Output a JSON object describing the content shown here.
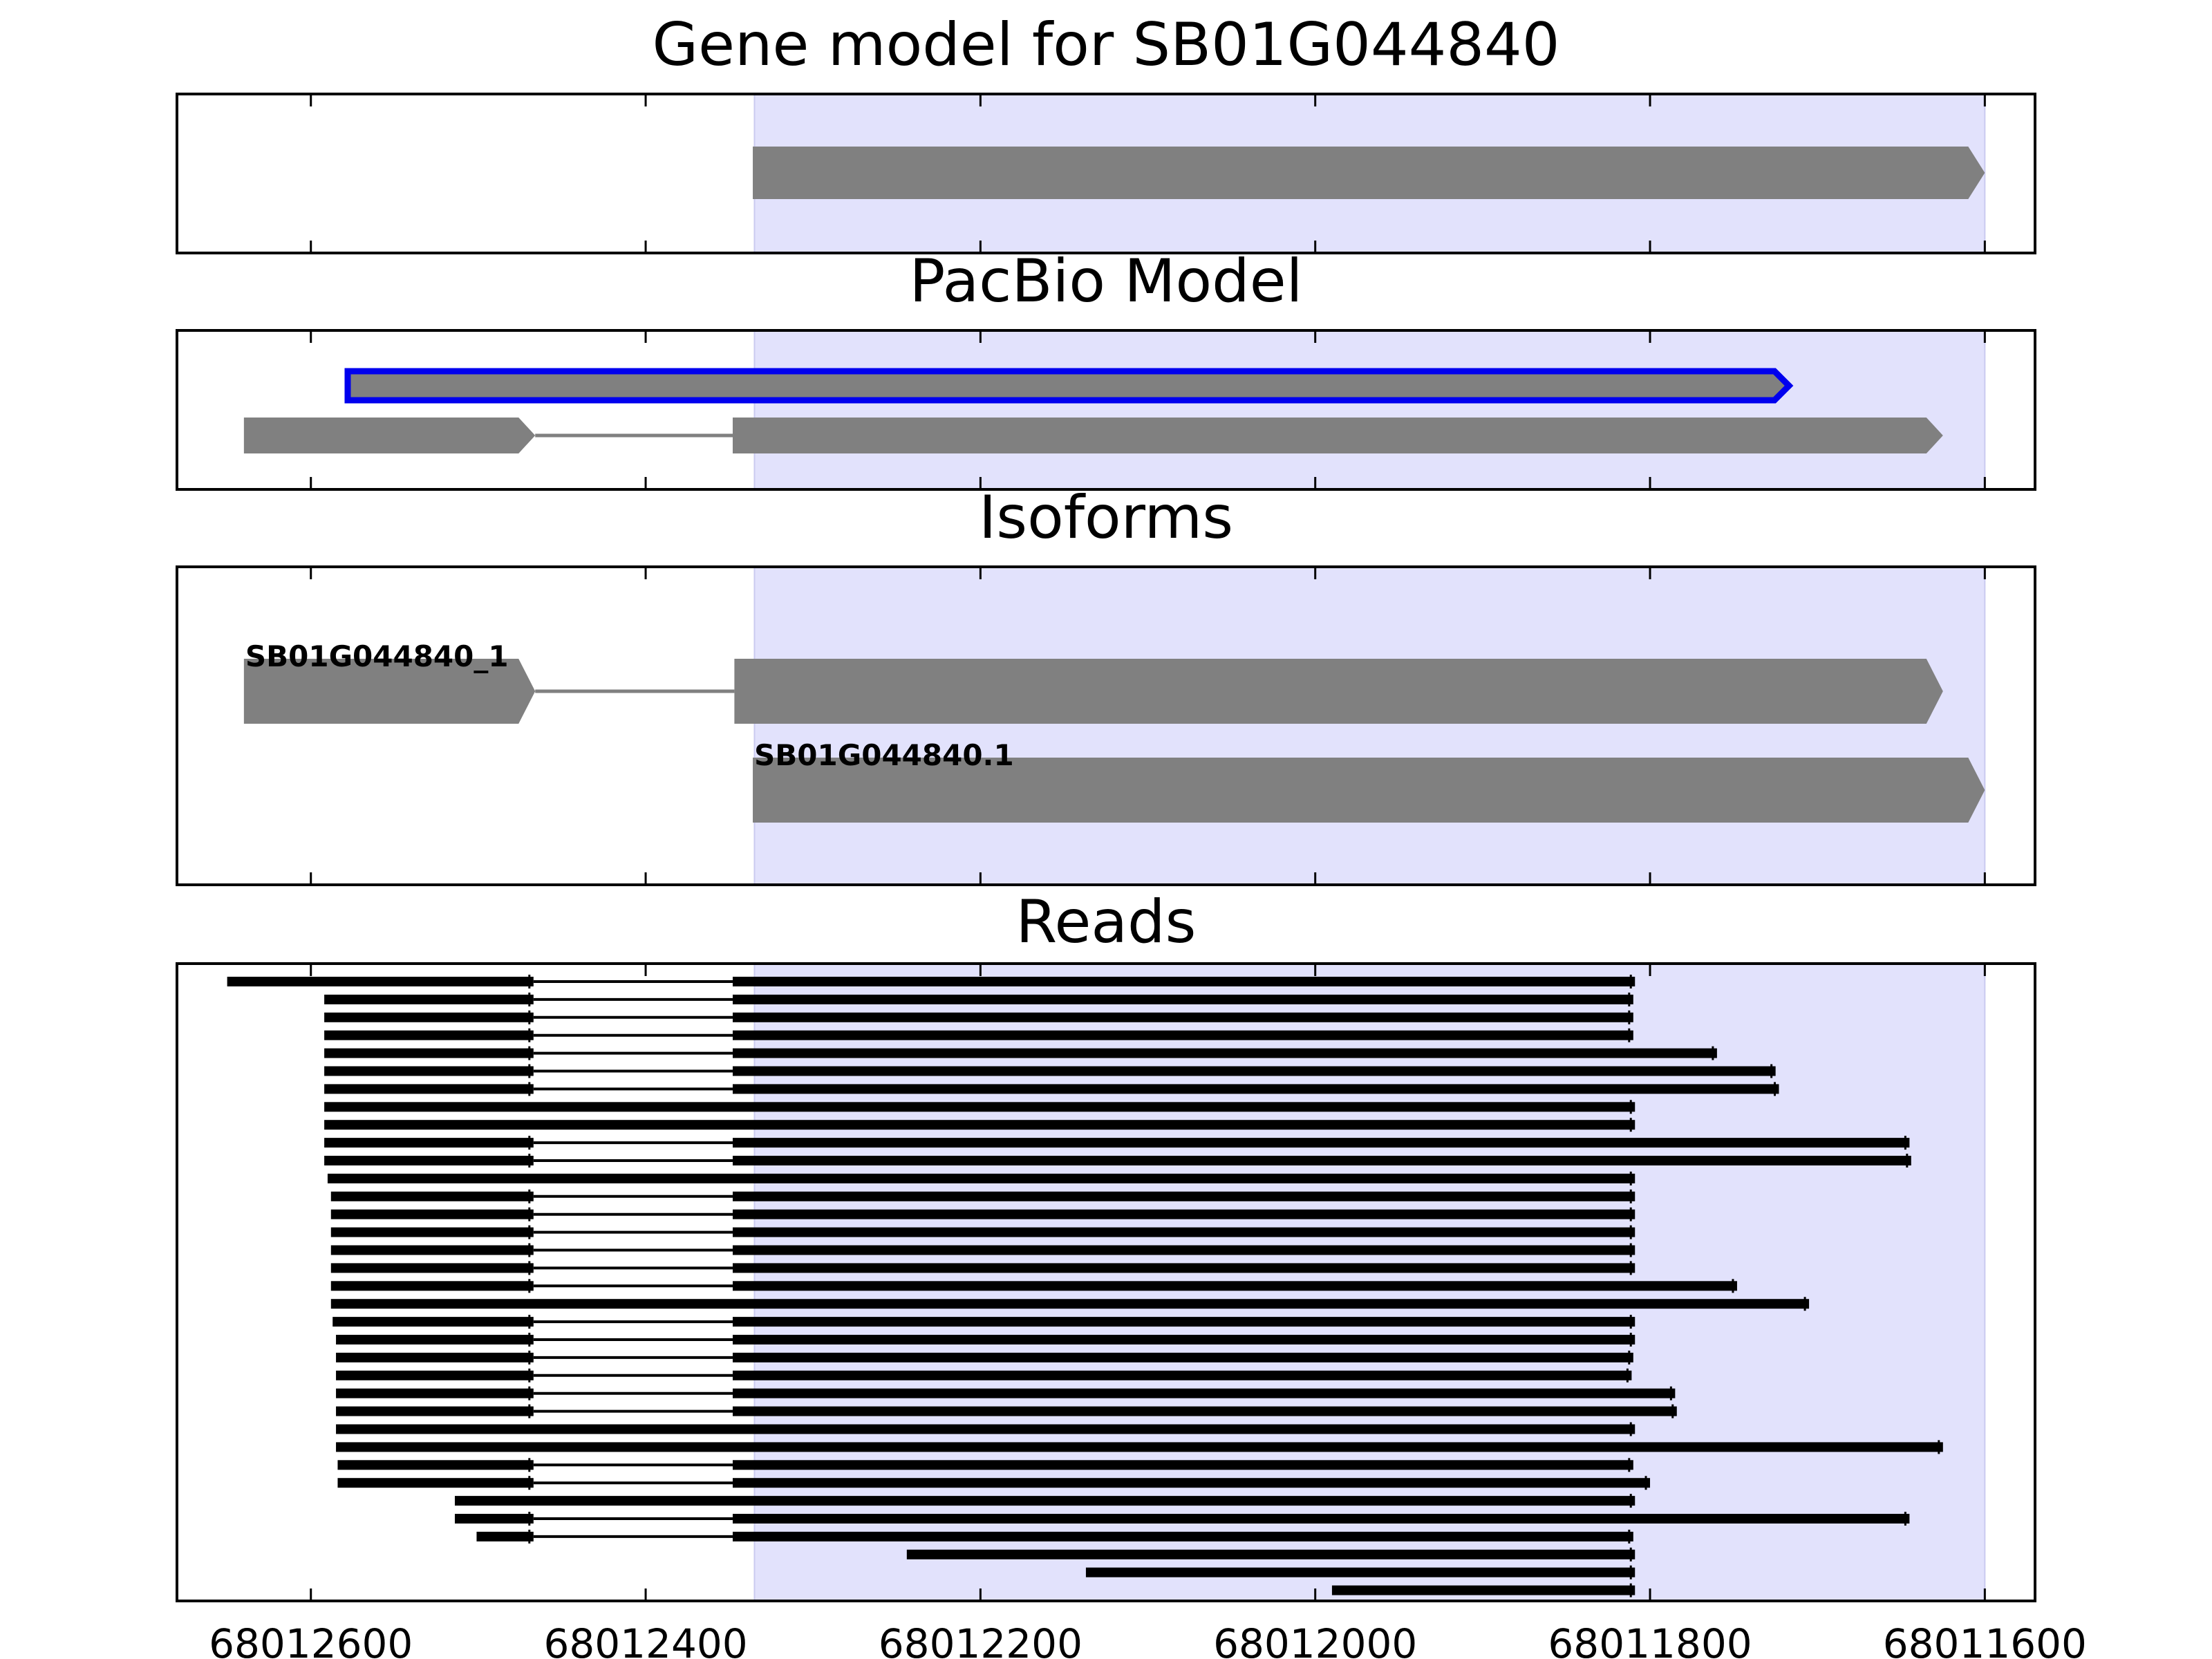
{
  "colors": {
    "highlight": "#e2e2fc",
    "highlight_edge": "#cacaf0",
    "feature": "#808080",
    "pacbio_edge": "#0000ee",
    "read": "#000000",
    "axis": "#000000"
  },
  "chart_data": {
    "type": "gene-model-track",
    "x_axis": {
      "min": 68012680,
      "max": 68011570,
      "reversed": true,
      "ticks": [
        68012600,
        68012400,
        68012200,
        68012000,
        68011800,
        68011600
      ],
      "tick_labels": [
        "68012600",
        "68012400",
        "68012200",
        "68012000",
        "68011800",
        "68011600"
      ]
    },
    "highlight_region": {
      "start": 68012335,
      "end": 68011600
    },
    "panels": [
      {
        "id": "gene-model",
        "title": "Gene model for SB01G044840",
        "features": [
          {
            "exons": [
              [
                68012336,
                68011600
              ]
            ],
            "strand": "-",
            "row": 0
          }
        ]
      },
      {
        "id": "pacbio-model",
        "title": "PacBio Model",
        "features": [
          {
            "exons": [
              [
                68012578,
                68011717
              ]
            ],
            "strand": "-",
            "row": 0,
            "outlined": true
          },
          {
            "exons": [
              [
                68012640,
                68012466
              ],
              [
                68012348,
                68011625
              ]
            ],
            "strand": "-",
            "row": 1
          }
        ]
      },
      {
        "id": "isoforms",
        "title": "Isoforms",
        "features": [
          {
            "label": "SB01G044840_1",
            "exons": [
              [
                68012640,
                68012466
              ],
              [
                68012347,
                68011625
              ]
            ],
            "strand": "-",
            "row": 0
          },
          {
            "label": "SB01G044840.1",
            "exons": [
              [
                68012336,
                68011600
              ]
            ],
            "strand": "-",
            "row": 1
          }
        ]
      },
      {
        "id": "reads",
        "title": "Reads",
        "reads": [
          {
            "exons": [
              [
                68012650,
                68012467
              ],
              [
                68012348,
                68011809
              ]
            ]
          },
          {
            "exons": [
              [
                68012592,
                68012467
              ],
              [
                68012348,
                68011810
              ]
            ]
          },
          {
            "exons": [
              [
                68012592,
                68012467
              ],
              [
                68012348,
                68011810
              ]
            ]
          },
          {
            "exons": [
              [
                68012592,
                68012467
              ],
              [
                68012348,
                68011810
              ]
            ]
          },
          {
            "exons": [
              [
                68012592,
                68012467
              ],
              [
                68012348,
                68011760
              ]
            ]
          },
          {
            "exons": [
              [
                68012592,
                68012467
              ],
              [
                68012348,
                68011725
              ]
            ]
          },
          {
            "exons": [
              [
                68012592,
                68012467
              ],
              [
                68012348,
                68011723
              ]
            ]
          },
          {
            "exons": [
              [
                68012592,
                68011809
              ]
            ]
          },
          {
            "exons": [
              [
                68012592,
                68011809
              ]
            ]
          },
          {
            "exons": [
              [
                68012592,
                68012467
              ],
              [
                68012348,
                68011645
              ]
            ]
          },
          {
            "exons": [
              [
                68012592,
                68012467
              ],
              [
                68012348,
                68011644
              ]
            ]
          },
          {
            "exons": [
              [
                68012590,
                68011809
              ]
            ]
          },
          {
            "exons": [
              [
                68012588,
                68012467
              ],
              [
                68012348,
                68011809
              ]
            ]
          },
          {
            "exons": [
              [
                68012588,
                68012467
              ],
              [
                68012348,
                68011809
              ]
            ]
          },
          {
            "exons": [
              [
                68012588,
                68012467
              ],
              [
                68012348,
                68011809
              ]
            ]
          },
          {
            "exons": [
              [
                68012588,
                68012467
              ],
              [
                68012348,
                68011809
              ]
            ]
          },
          {
            "exons": [
              [
                68012588,
                68012467
              ],
              [
                68012348,
                68011809
              ]
            ]
          },
          {
            "exons": [
              [
                68012588,
                68012467
              ],
              [
                68012348,
                68011748
              ]
            ]
          },
          {
            "exons": [
              [
                68012588,
                68011705
              ]
            ]
          },
          {
            "exons": [
              [
                68012587,
                68012467
              ],
              [
                68012348,
                68011809
              ]
            ]
          },
          {
            "exons": [
              [
                68012585,
                68012467
              ],
              [
                68012348,
                68011809
              ]
            ]
          },
          {
            "exons": [
              [
                68012585,
                68012467
              ],
              [
                68012348,
                68011810
              ]
            ]
          },
          {
            "exons": [
              [
                68012585,
                68012467
              ],
              [
                68012348,
                68011811
              ]
            ]
          },
          {
            "exons": [
              [
                68012585,
                68012467
              ],
              [
                68012348,
                68011785
              ]
            ]
          },
          {
            "exons": [
              [
                68012585,
                68012467
              ],
              [
                68012348,
                68011784
              ]
            ]
          },
          {
            "exons": [
              [
                68012585,
                68011809
              ]
            ]
          },
          {
            "exons": [
              [
                68012585,
                68011625
              ]
            ]
          },
          {
            "exons": [
              [
                68012584,
                68012467
              ],
              [
                68012348,
                68011810
              ]
            ]
          },
          {
            "exons": [
              [
                68012584,
                68012467
              ],
              [
                68012348,
                68011800
              ]
            ]
          },
          {
            "exons": [
              [
                68012514,
                68011809
              ]
            ]
          },
          {
            "exons": [
              [
                68012514,
                68012467
              ],
              [
                68012348,
                68011645
              ]
            ]
          },
          {
            "exons": [
              [
                68012501,
                68012467
              ],
              [
                68012348,
                68011810
              ]
            ]
          },
          {
            "exons": [
              [
                68012244,
                68011809
              ]
            ]
          },
          {
            "exons": [
              [
                68012137,
                68011809
              ]
            ]
          },
          {
            "exons": [
              [
                68011990,
                68011809
              ]
            ]
          }
        ]
      }
    ]
  }
}
